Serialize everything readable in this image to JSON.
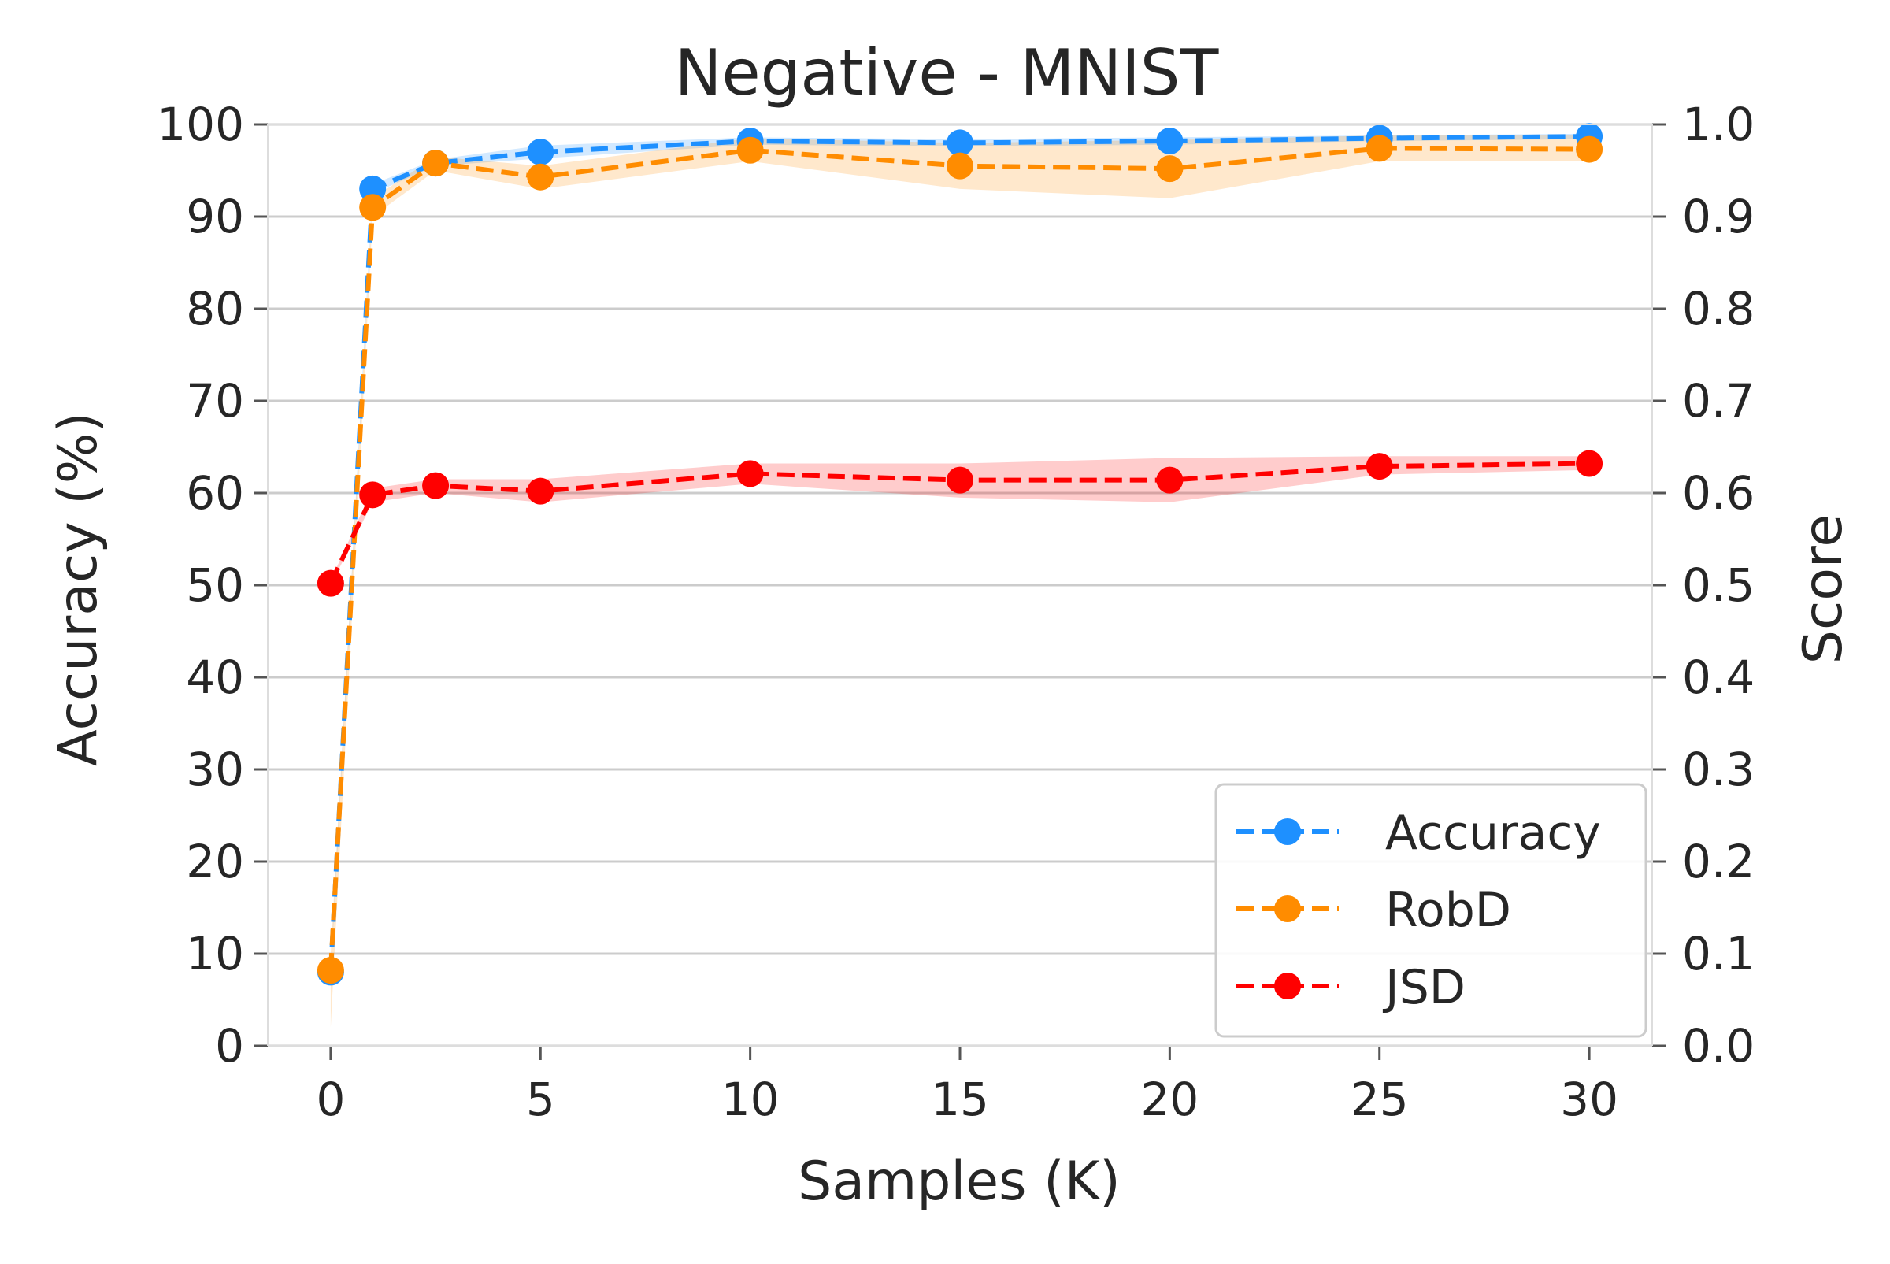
{
  "chart_data": {
    "type": "line",
    "title": "Negative - MNIST",
    "xlabel": "Samples (K)",
    "ylabel": "Accuracy (%)",
    "y2label": "Score",
    "xlim": [
      -1.5,
      31.5
    ],
    "ylim": [
      0,
      100
    ],
    "y2lim": [
      0.0,
      1.0
    ],
    "grid": true,
    "legend_position": "lower-right",
    "x": [
      0,
      1,
      2.5,
      5,
      10,
      15,
      20,
      25,
      30
    ],
    "xticks": [
      0,
      5,
      10,
      15,
      20,
      25,
      30
    ],
    "xtick_labels": [
      "0",
      "5",
      "10",
      "15",
      "20",
      "25",
      "30"
    ],
    "yticks": [
      0,
      10,
      20,
      30,
      40,
      50,
      60,
      70,
      80,
      90,
      100
    ],
    "ytick_labels": [
      "0",
      "10",
      "20",
      "30",
      "40",
      "50",
      "60",
      "70",
      "80",
      "90",
      "100"
    ],
    "y2ticks": [
      0.0,
      0.1,
      0.2,
      0.3,
      0.4,
      0.5,
      0.6,
      0.7,
      0.8,
      0.9,
      1.0
    ],
    "y2tick_labels": [
      "0.0",
      "0.1",
      "0.2",
      "0.3",
      "0.4",
      "0.5",
      "0.6",
      "0.7",
      "0.8",
      "0.9",
      "1.0"
    ],
    "series": [
      {
        "name": "Accuracy",
        "axis": "left",
        "color": "#1e90ff",
        "values": [
          8.0,
          93.0,
          95.8,
          97.0,
          98.2,
          98.0,
          98.2,
          98.5,
          98.7
        ],
        "band_low": [
          7.5,
          92.5,
          95.5,
          96.3,
          97.8,
          97.6,
          97.8,
          98.2,
          98.4
        ],
        "band_high": [
          8.5,
          93.5,
          96.2,
          97.7,
          98.6,
          98.4,
          98.6,
          98.8,
          99.0
        ]
      },
      {
        "name": "RobD",
        "axis": "left",
        "color": "#ff8c00",
        "values": [
          8.2,
          91.0,
          95.8,
          94.3,
          97.2,
          95.5,
          95.2,
          97.4,
          97.3
        ],
        "band_low": [
          2.0,
          90.0,
          95.0,
          93.0,
          96.0,
          93.0,
          92.0,
          96.0,
          96.0
        ],
        "band_high": [
          10.0,
          92.0,
          96.5,
          95.5,
          98.5,
          98.0,
          98.3,
          98.8,
          98.8
        ]
      },
      {
        "name": "JSD",
        "axis": "right",
        "color": "#ff0000",
        "values": [
          0.502,
          0.598,
          0.608,
          0.602,
          0.621,
          0.614,
          0.614,
          0.629,
          0.632
        ],
        "band_low": [
          0.5,
          0.59,
          0.6,
          0.59,
          0.61,
          0.595,
          0.59,
          0.62,
          0.625
        ],
        "band_high": [
          0.505,
          0.605,
          0.615,
          0.615,
          0.632,
          0.632,
          0.638,
          0.64,
          0.64
        ]
      }
    ]
  }
}
